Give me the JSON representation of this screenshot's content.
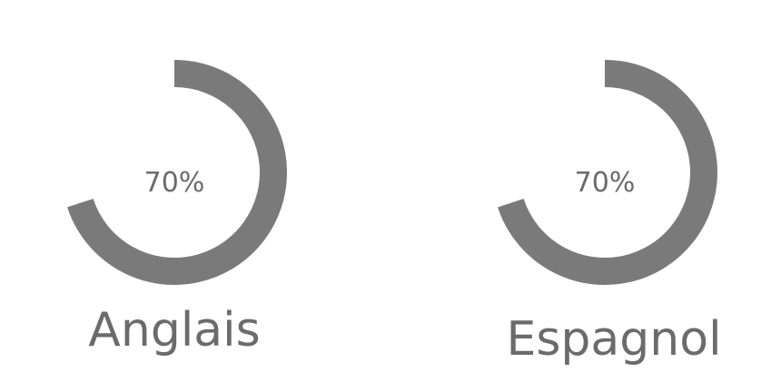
{
  "chart_data": {
    "type": "pie",
    "title": "",
    "series": [
      {
        "name": "Anglais",
        "value_label": "70%",
        "value": 70
      },
      {
        "name": "Espagnol",
        "value_label": "70%",
        "value": 70
      }
    ],
    "max": 100,
    "colors": {
      "arc": "#7a7a7a",
      "text": "#6b6b6b"
    }
  }
}
